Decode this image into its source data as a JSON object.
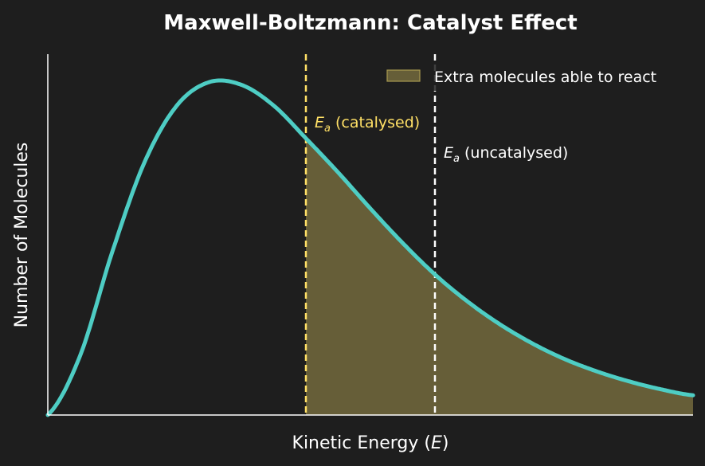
{
  "chart_data": {
    "type": "area",
    "title": "Maxwell-Boltzmann: Catalyst Effect",
    "xlabel_prefix": "Kinetic Energy (",
    "xlabel_var": "E",
    "xlabel_suffix": ")",
    "ylabel": "Number of Molecules",
    "xlim": [
      0,
      10
    ],
    "ylim": [
      0,
      1.05
    ],
    "grid": false,
    "x": [
      0,
      0.5,
      1,
      1.5,
      2,
      2.5,
      3,
      3.5,
      4,
      4.5,
      5,
      5.5,
      6,
      6.5,
      7,
      7.5,
      8,
      8.5,
      9,
      9.5,
      10
    ],
    "y": [
      0,
      0.177,
      0.488,
      0.756,
      0.925,
      0.995,
      0.987,
      0.925,
      0.827,
      0.725,
      0.617,
      0.514,
      0.42,
      0.34,
      0.272,
      0.215,
      0.168,
      0.131,
      0.101,
      0.077,
      0.059
    ],
    "shaded_from": 4,
    "markers": [
      {
        "x": 4,
        "label_var": "E",
        "label_sub": "a",
        "label_text": " (catalysed)",
        "color": "#ffe066"
      },
      {
        "x": 6,
        "label_var": "E",
        "label_sub": "a",
        "label_text": " (uncatalysed)",
        "color": "#ffffff"
      }
    ],
    "legend": {
      "label": "Extra molecules able to react",
      "placement": "top-right"
    },
    "colors": {
      "background": "#1e1e1e",
      "curve": "#4ecdc4",
      "fill": "#665e38",
      "fill_edge": "#a89a50",
      "axis": "#ffffff",
      "text": "#ffffff"
    }
  }
}
